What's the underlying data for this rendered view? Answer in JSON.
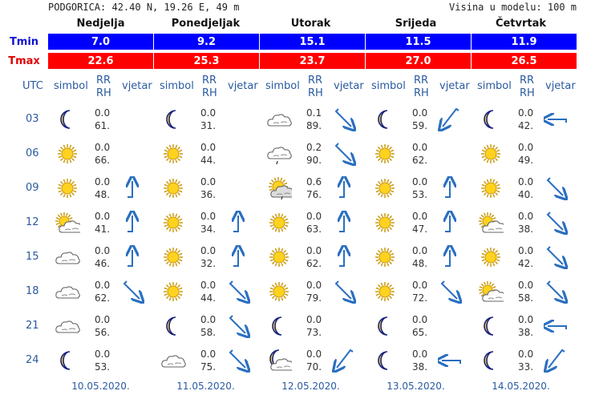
{
  "header": {
    "location": "PODGORICA: 42.40 N, 19.26 E, 49 m",
    "model_height": "Visina u modelu: 100 m"
  },
  "labels": {
    "tmin": "Tmin",
    "tmax": "Tmax",
    "utc": "UTC",
    "symbol": "simbol",
    "rr": "RR",
    "rh": "RH",
    "wind": "vjetar"
  },
  "colors": {
    "tmin_bg": "#0000ff",
    "tmax_bg": "#ff0000",
    "link": "#2a5aa0",
    "wind": "#2a6fc0"
  },
  "days": [
    {
      "name": "Nedjelja",
      "tmin": "7.0",
      "tmax": "22.6",
      "date": "10.05.2020."
    },
    {
      "name": "Ponedjeljak",
      "tmin": "9.2",
      "tmax": "25.3",
      "date": "11.05.2020."
    },
    {
      "name": "Utorak",
      "tmin": "15.1",
      "tmax": "23.7",
      "date": "12.05.2020."
    },
    {
      "name": "Srijeda",
      "tmin": "11.5",
      "tmax": "27.0",
      "date": "13.05.2020."
    },
    {
      "name": "Četvrtak",
      "tmin": "11.9",
      "tmax": "26.5",
      "date": "14.05.2020."
    }
  ],
  "hours": [
    "03",
    "06",
    "09",
    "12",
    "15",
    "18",
    "21",
    "24"
  ],
  "forecast": [
    [
      {
        "sym": "moon",
        "rr": "0.0",
        "rh": "61.",
        "wind": ""
      },
      {
        "sym": "sun",
        "rr": "0.0",
        "rh": "66.",
        "wind": ""
      },
      {
        "sym": "sun",
        "rr": "0.0",
        "rh": "48.",
        "wind": "up"
      },
      {
        "sym": "sun-cloud",
        "rr": "0.0",
        "rh": "41.",
        "wind": "up"
      },
      {
        "sym": "cloud",
        "rr": "0.0",
        "rh": "46.",
        "wind": "up"
      },
      {
        "sym": "cloud",
        "rr": "0.0",
        "rh": "62.",
        "wind": "down-right"
      },
      {
        "sym": "cloud",
        "rr": "0.0",
        "rh": "56.",
        "wind": ""
      },
      {
        "sym": "moon",
        "rr": "0.0",
        "rh": "53.",
        "wind": ""
      }
    ],
    [
      {
        "sym": "moon",
        "rr": "0.0",
        "rh": "31.",
        "wind": ""
      },
      {
        "sym": "sun",
        "rr": "0.0",
        "rh": "44.",
        "wind": ""
      },
      {
        "sym": "sun",
        "rr": "0.0",
        "rh": "36.",
        "wind": ""
      },
      {
        "sym": "sun",
        "rr": "0.0",
        "rh": "34.",
        "wind": "up"
      },
      {
        "sym": "sun",
        "rr": "0.0",
        "rh": "32.",
        "wind": "up"
      },
      {
        "sym": "sun",
        "rr": "0.0",
        "rh": "44.",
        "wind": "down-right"
      },
      {
        "sym": "moon",
        "rr": "0.0",
        "rh": "58.",
        "wind": "down-right"
      },
      {
        "sym": "cloud",
        "rr": "0.0",
        "rh": "75.",
        "wind": "down-right"
      }
    ],
    [
      {
        "sym": "cloud",
        "rr": "0.1",
        "rh": "89.",
        "wind": "down-right"
      },
      {
        "sym": "rain-cloud",
        "rr": "0.2",
        "rh": "90.",
        "wind": "down-right"
      },
      {
        "sym": "sun-rain",
        "rr": "0.6",
        "rh": "76.",
        "wind": "up"
      },
      {
        "sym": "sun",
        "rr": "0.0",
        "rh": "63.",
        "wind": "up"
      },
      {
        "sym": "sun",
        "rr": "0.0",
        "rh": "62.",
        "wind": "up"
      },
      {
        "sym": "sun",
        "rr": "0.0",
        "rh": "79.",
        "wind": "down-right"
      },
      {
        "sym": "moon",
        "rr": "0.0",
        "rh": "73.",
        "wind": ""
      },
      {
        "sym": "moon-cloud",
        "rr": "0.0",
        "rh": "70.",
        "wind": "down-left"
      }
    ],
    [
      {
        "sym": "moon",
        "rr": "0.0",
        "rh": "59.",
        "wind": "down-left"
      },
      {
        "sym": "sun",
        "rr": "0.0",
        "rh": "62.",
        "wind": ""
      },
      {
        "sym": "sun",
        "rr": "0.0",
        "rh": "53.",
        "wind": "up"
      },
      {
        "sym": "sun",
        "rr": "0.0",
        "rh": "47.",
        "wind": "up"
      },
      {
        "sym": "sun",
        "rr": "0.0",
        "rh": "48.",
        "wind": "up"
      },
      {
        "sym": "sun",
        "rr": "0.0",
        "rh": "72.",
        "wind": "down-right"
      },
      {
        "sym": "moon",
        "rr": "0.0",
        "rh": "65.",
        "wind": ""
      },
      {
        "sym": "moon",
        "rr": "0.0",
        "rh": "38.",
        "wind": "left"
      }
    ],
    [
      {
        "sym": "moon",
        "rr": "0.0",
        "rh": "42.",
        "wind": "left"
      },
      {
        "sym": "sun",
        "rr": "0.0",
        "rh": "49.",
        "wind": ""
      },
      {
        "sym": "sun",
        "rr": "0.0",
        "rh": "40.",
        "wind": "down-right"
      },
      {
        "sym": "sun-cloud",
        "rr": "0.0",
        "rh": "38.",
        "wind": "down-right"
      },
      {
        "sym": "sun",
        "rr": "0.0",
        "rh": "42.",
        "wind": "down-right"
      },
      {
        "sym": "sun-cloud",
        "rr": "0.0",
        "rh": "58.",
        "wind": "down-right"
      },
      {
        "sym": "moon",
        "rr": "0.0",
        "rh": "38.",
        "wind": "left"
      },
      {
        "sym": "moon",
        "rr": "0.0",
        "rh": "33.",
        "wind": "down-left"
      }
    ]
  ]
}
